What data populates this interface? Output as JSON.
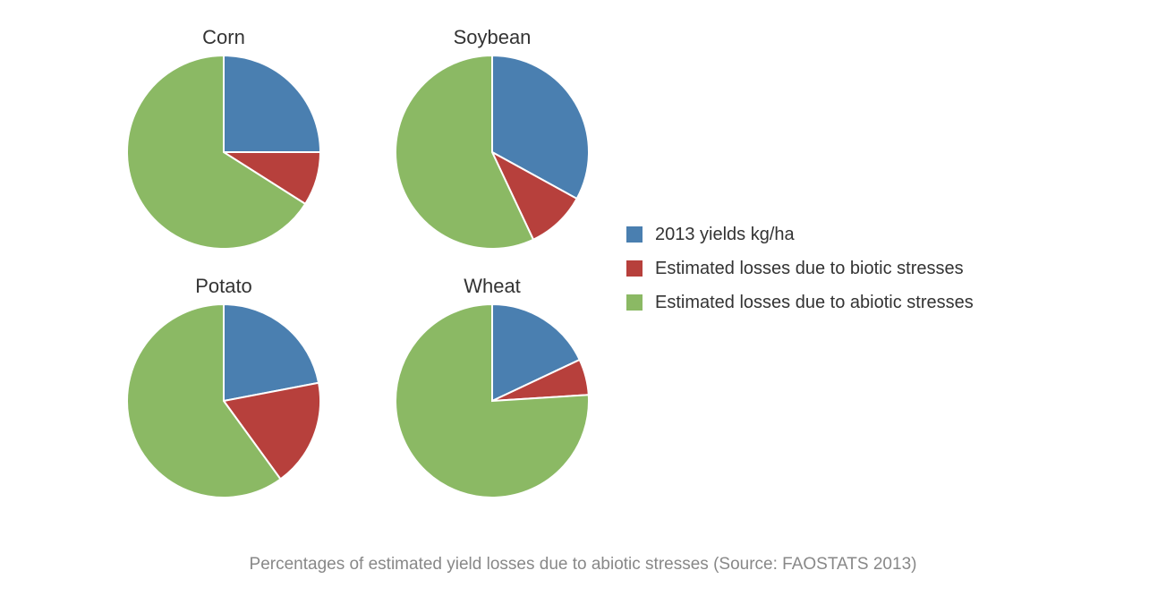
{
  "background_color": "#ffffff",
  "caption": "Percentages of estimated yield losses due to abiotic stresses (Source: FAOSTATS 2013)",
  "caption_color": "#888888",
  "caption_fontsize": 19,
  "title_fontsize": 22,
  "title_color": "#333333",
  "legend_fontsize": 20,
  "legend_label_color": "#333333",
  "stroke_width": 2,
  "stroke_color": "#ffffff",
  "slice_colors": {
    "yields": "#4a7fb0",
    "biotic": "#b7403c",
    "abiotic": "#8bb964"
  },
  "legend": [
    {
      "key": "yields",
      "label": "2013 yields kg/ha",
      "color": "#4a7fb0"
    },
    {
      "key": "biotic",
      "label": "Estimated losses due to biotic stresses",
      "color": "#b7403c"
    },
    {
      "key": "abiotic",
      "label": "Estimated losses due to abiotic stresses",
      "color": "#8bb964"
    }
  ],
  "charts": [
    {
      "id": "corn",
      "title": "Corn",
      "type": "pie",
      "radius": 108,
      "start_angle_deg": 0,
      "slices": [
        {
          "key": "yields",
          "value": 25,
          "color": "#4a7fb0"
        },
        {
          "key": "biotic",
          "value": 9,
          "color": "#b7403c"
        },
        {
          "key": "abiotic",
          "value": 66,
          "color": "#8bb964"
        }
      ]
    },
    {
      "id": "soybean",
      "title": "Soybean",
      "type": "pie",
      "radius": 108,
      "start_angle_deg": 0,
      "slices": [
        {
          "key": "yields",
          "value": 33,
          "color": "#4a7fb0"
        },
        {
          "key": "biotic",
          "value": 10,
          "color": "#b7403c"
        },
        {
          "key": "abiotic",
          "value": 57,
          "color": "#8bb964"
        }
      ]
    },
    {
      "id": "potato",
      "title": "Potato",
      "type": "pie",
      "radius": 108,
      "start_angle_deg": 0,
      "slices": [
        {
          "key": "yields",
          "value": 22,
          "color": "#4a7fb0"
        },
        {
          "key": "biotic",
          "value": 18,
          "color": "#b7403c"
        },
        {
          "key": "abiotic",
          "value": 60,
          "color": "#8bb964"
        }
      ]
    },
    {
      "id": "wheat",
      "title": "Wheat",
      "type": "pie",
      "radius": 108,
      "start_angle_deg": 0,
      "slices": [
        {
          "key": "yields",
          "value": 18,
          "color": "#4a7fb0"
        },
        {
          "key": "biotic",
          "value": 6,
          "color": "#b7403c"
        },
        {
          "key": "abiotic",
          "value": 76,
          "color": "#8bb964"
        }
      ]
    }
  ]
}
